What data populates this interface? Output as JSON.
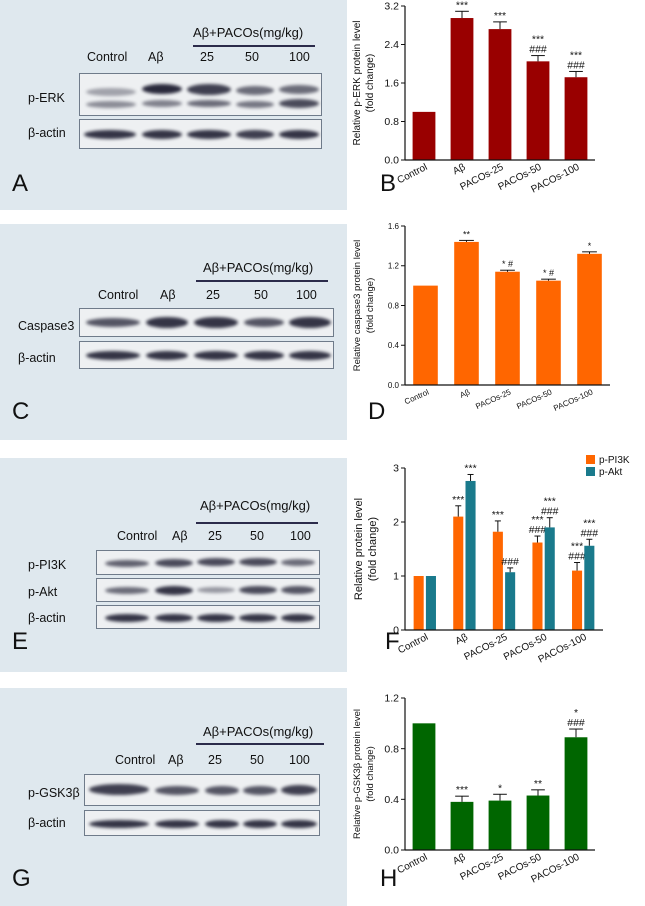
{
  "figure": {
    "letters": [
      "A",
      "B",
      "C",
      "D",
      "E",
      "F",
      "G",
      "H"
    ],
    "blots": [
      {
        "id": "A",
        "header": "Aβ+PACOs(mg/kg)",
        "lanes": [
          "Control",
          "Aβ",
          "25",
          "50",
          "100"
        ],
        "rows": [
          "p-ERK",
          "β-actin"
        ]
      },
      {
        "id": "C",
        "header": "Aβ+PACOs(mg/kg)",
        "lanes": [
          "Control",
          "Aβ",
          "25",
          "50",
          "100"
        ],
        "rows": [
          "Caspase3",
          "β-actin"
        ]
      },
      {
        "id": "E",
        "header": "Aβ+PACOs(mg/kg)",
        "lanes": [
          "Control",
          "Aβ",
          "25",
          "50",
          "100"
        ],
        "rows": [
          "p-PI3K",
          "p-Akt",
          "β-actin"
        ]
      },
      {
        "id": "G",
        "header": "Aβ+PACOs(mg/kg)",
        "lanes": [
          "Control",
          "Aβ",
          "25",
          "50",
          "100"
        ],
        "rows": [
          "p-GSK3β",
          "β-actin"
        ]
      }
    ]
  },
  "colors": {
    "B": "#990000",
    "D": "#ff6600",
    "F1": "#ff6600",
    "F2": "#1a7a8c",
    "H": "#006600"
  },
  "chart_data": [
    {
      "id": "B",
      "type": "bar",
      "ylabel": [
        "Relative p-ERK protein level",
        "(fold change)"
      ],
      "categories": [
        "Control",
        "Aβ",
        "PACOs-25",
        "PACOs-50",
        "PACOs-100"
      ],
      "values": [
        1.0,
        2.95,
        2.72,
        2.05,
        1.72
      ],
      "errors": [
        0,
        0.14,
        0.15,
        0.12,
        0.12
      ],
      "annotations": [
        [],
        [
          "***"
        ],
        [
          "***"
        ],
        [
          "***",
          "###"
        ],
        [
          "***",
          "###"
        ]
      ],
      "ylim": [
        0,
        3.2
      ],
      "yticks": [
        "0.0",
        "0.8",
        "1.6",
        "2.4",
        "3.2"
      ]
    },
    {
      "id": "D",
      "type": "bar",
      "ylabel": [
        "Relative caspase3 protein level",
        "(fold change)"
      ],
      "categories": [
        "Control",
        "Aβ",
        "PACOs-25",
        "PACOs-50",
        "PACOs-100"
      ],
      "values": [
        1.0,
        1.44,
        1.14,
        1.05,
        1.32
      ],
      "errors": [
        0,
        0.015,
        0.015,
        0.015,
        0.02
      ],
      "annotations": [
        [],
        [
          "**"
        ],
        [
          "* #"
        ],
        [
          "* #"
        ],
        [
          "*"
        ]
      ],
      "ylim": [
        0,
        1.6
      ],
      "yticks": [
        "0.0",
        "0.4",
        "0.8",
        "1.2",
        "1.6"
      ]
    },
    {
      "id": "F",
      "type": "bar",
      "ylabel": [
        "Relative  protein level",
        "(fold change)"
      ],
      "categories": [
        "Control",
        "Aβ",
        "PACOs-25",
        "PACOs-50",
        "PACOs-100"
      ],
      "series": [
        {
          "name": "p-PI3K",
          "values": [
            1.0,
            2.1,
            1.82,
            1.62,
            1.1
          ],
          "errors": [
            0,
            0.2,
            0.2,
            0.12,
            0.15
          ],
          "annotations": [
            [],
            [
              "***"
            ],
            [
              "***"
            ],
            [
              "***",
              "###"
            ],
            [
              "***",
              "###"
            ]
          ]
        },
        {
          "name": "p-Akt",
          "values": [
            1.0,
            2.76,
            1.07,
            1.9,
            1.56
          ],
          "errors": [
            0,
            0.12,
            0.08,
            0.18,
            0.12
          ],
          "annotations": [
            [],
            [
              "***"
            ],
            [
              "###"
            ],
            [
              "***",
              "###"
            ],
            [
              "***",
              "###"
            ]
          ]
        }
      ],
      "legend": "top-right",
      "ylim": [
        0,
        3
      ],
      "yticks": [
        "0",
        "1",
        "2",
        "3"
      ]
    },
    {
      "id": "H",
      "type": "bar",
      "ylabel": [
        "Relative p-GSK3β protein level",
        "(fold change)"
      ],
      "categories": [
        "Control",
        "Aβ",
        "PACOs-25",
        "PACOs-50",
        "PACOs-100"
      ],
      "values": [
        1.0,
        0.38,
        0.39,
        0.43,
        0.89
      ],
      "errors": [
        0,
        0.045,
        0.05,
        0.045,
        0.065
      ],
      "annotations": [
        [],
        [
          "***"
        ],
        [
          "*"
        ],
        [
          "**"
        ],
        [
          "*",
          "###"
        ]
      ],
      "ylim": [
        0,
        1.2
      ],
      "yticks": [
        "0.0",
        "0.4",
        "0.8",
        "1.2"
      ]
    }
  ]
}
